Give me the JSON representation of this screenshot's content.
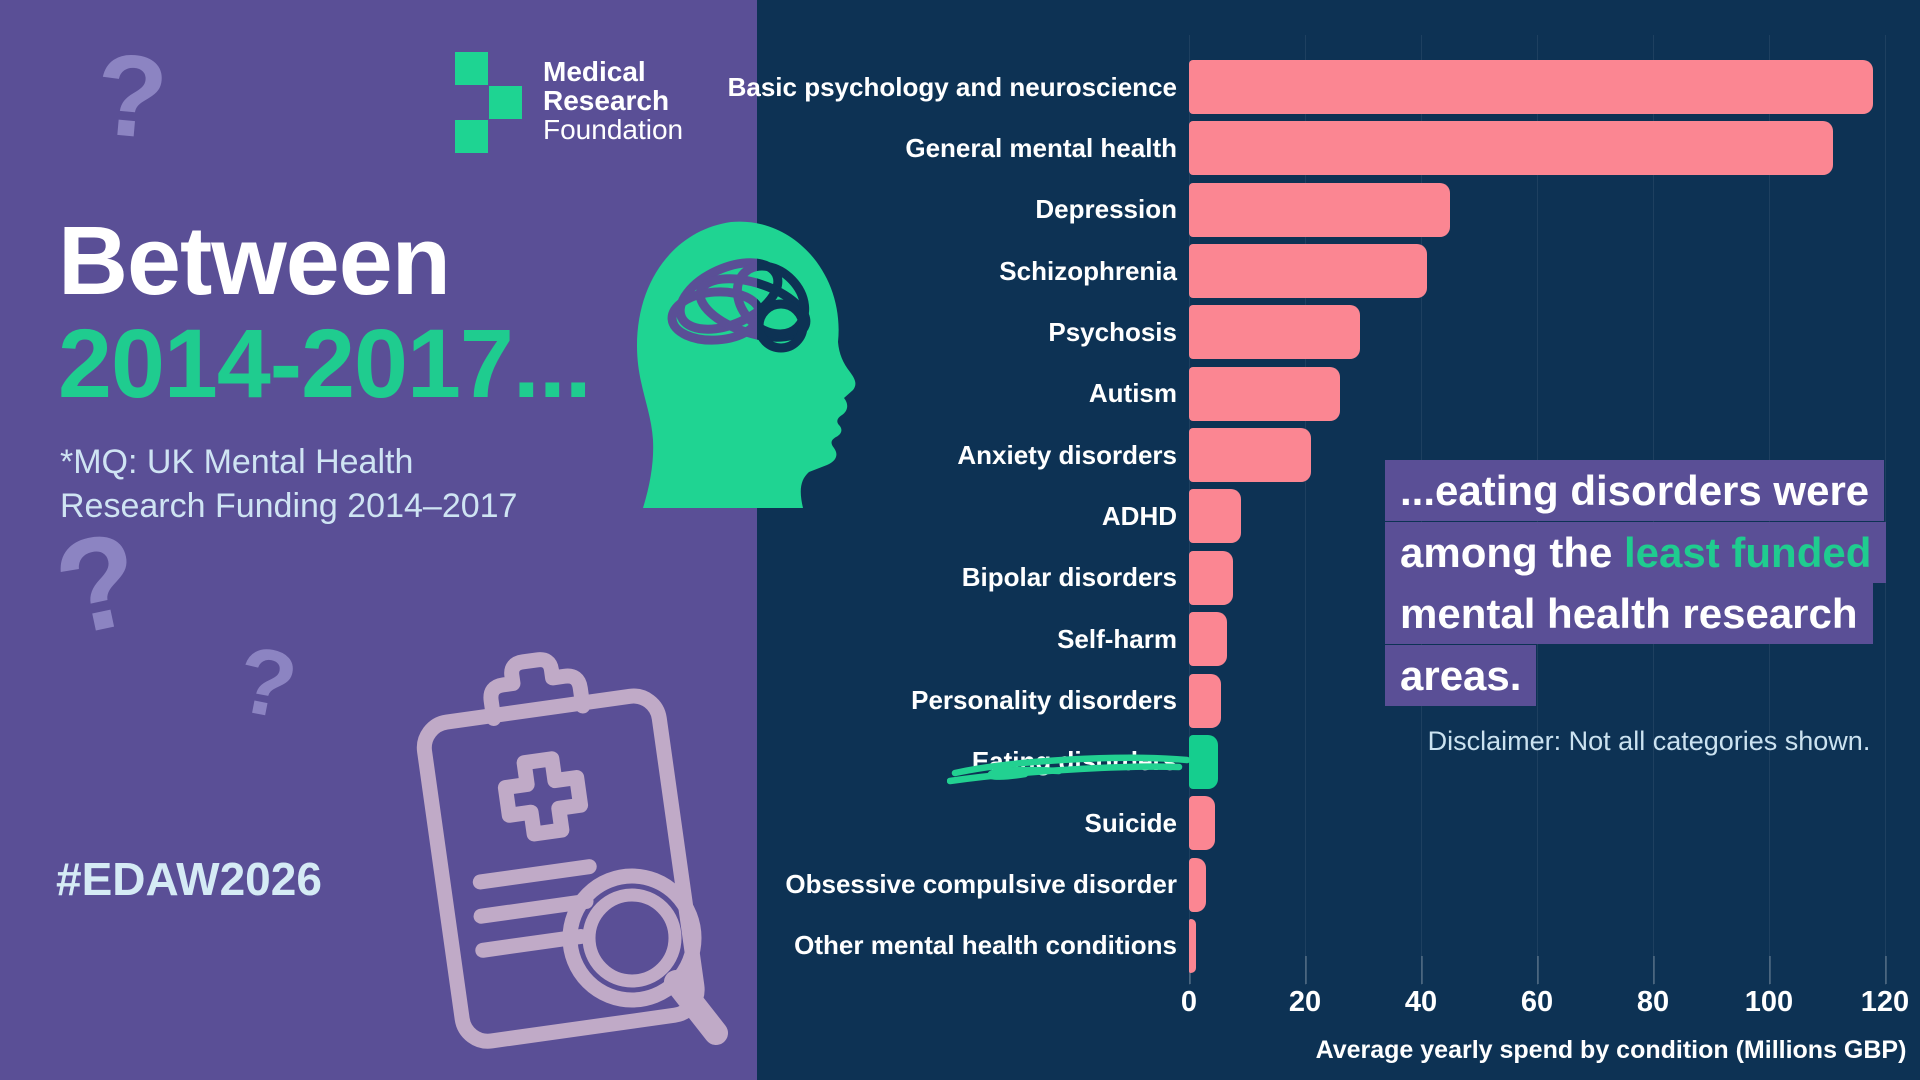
{
  "panel": {
    "logo": {
      "line1": "Medical",
      "line2": "Research",
      "line3": "Foundation"
    },
    "headline_line1": "Between",
    "headline_line2": "2014-2017...",
    "subtitle_line1": "*MQ: UK Mental Health",
    "subtitle_line2": "Research Funding 2014–2017",
    "hashtag": "#EDAW2026"
  },
  "decor": {
    "qmark": "?"
  },
  "callout": {
    "pre": "...eating disorders were among the ",
    "highlight": "least funded",
    "post": " mental health research areas."
  },
  "disclaimer": "Disclaimer: Not all categories shown.",
  "colors": {
    "purple_panel": "#5A4F96",
    "navy_panel": "#0D3254",
    "bar_pink": "#FB8692",
    "bar_green": "#15CE8E",
    "accent_green": "#1FCC8F",
    "light_blue_text": "#CFE4F3",
    "light_purple_decor": "#8C84C2",
    "clipboard_outline": "#C9B2CC",
    "white": "#FFFFFF"
  },
  "chart_data": {
    "type": "bar",
    "orientation": "horizontal",
    "categories": [
      "Basic psychology and neuroscience",
      "General mental health",
      "Depression",
      "Schizophrenia",
      "Psychosis",
      "Autism",
      "Anxiety disorders",
      "ADHD",
      "Bipolar disorders",
      "Self-harm",
      "Personality disorders",
      "Eating disorders",
      "Suicide",
      "Obsessive compulsive disorder",
      "Other mental health conditions"
    ],
    "values": [
      118,
      111,
      45,
      41,
      29.5,
      26,
      21,
      9,
      7.5,
      6.5,
      5.5,
      5,
      4.4,
      3,
      1.2
    ],
    "highlight_category": "Eating disorders",
    "bar_color": "#FB8692",
    "highlight_color": "#15CE8E",
    "xlabel": "Average yearly spend by condition (Millions GBP)",
    "xticks": [
      0,
      20,
      40,
      60,
      80,
      100,
      120
    ],
    "xlim": [
      0,
      120
    ],
    "grid": "vertical",
    "legend": "none",
    "annotations": [
      "...eating disorders were among the least funded mental health research areas.",
      "Disclaimer: Not all categories shown."
    ]
  }
}
